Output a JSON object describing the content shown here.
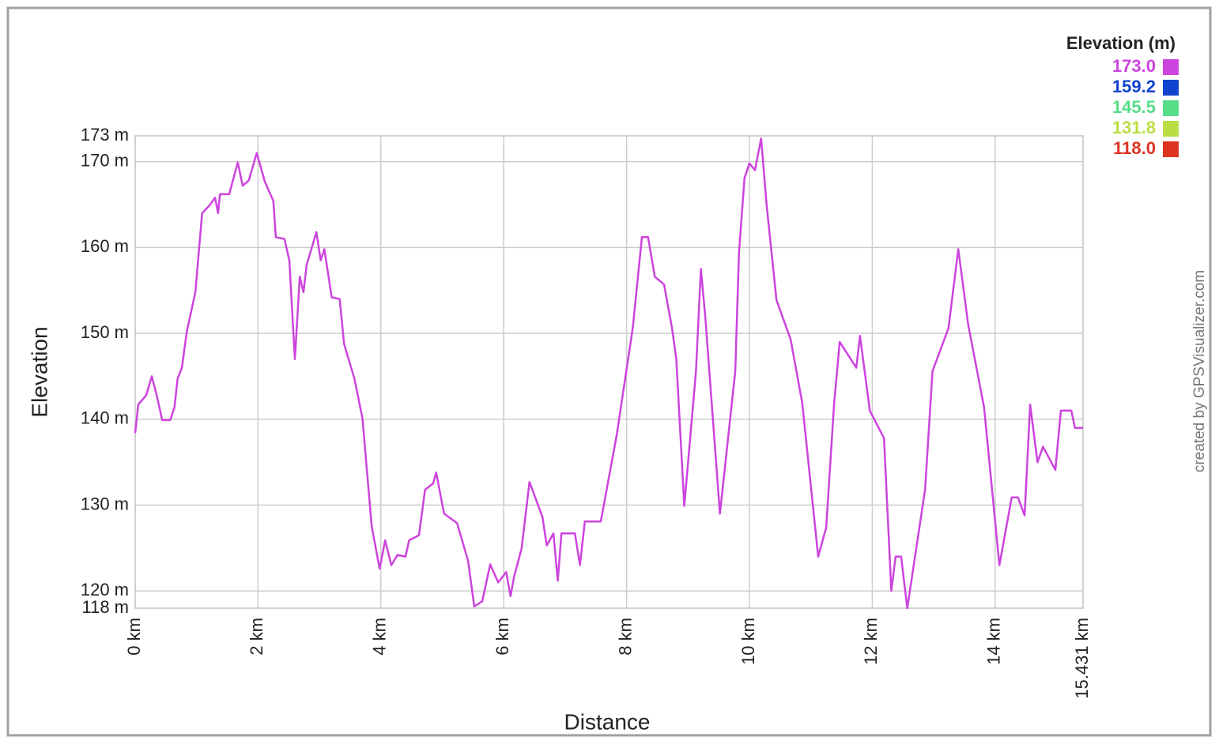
{
  "chart_data": {
    "type": "line",
    "xlabel": "Distance",
    "ylabel": "Elevation",
    "credit": "created by GPSVisualizer.com",
    "legend_title": "Elevation (m)",
    "color_scale": [
      {
        "value": 173.0,
        "label": "173.0",
        "color": "#cc44dd"
      },
      {
        "value": 159.2,
        "label": "159.2",
        "color": "#1144cc"
      },
      {
        "value": 145.5,
        "label": "145.5",
        "color": "#55dd88"
      },
      {
        "value": 131.8,
        "label": "131.8",
        "color": "#bbdd44"
      },
      {
        "value": 118.0,
        "label": "118.0",
        "color": "#dd3322"
      }
    ],
    "x": [
      0,
      0.05,
      0.18,
      0.27,
      0.35,
      0.44,
      0.57,
      0.64,
      0.69,
      0.76,
      0.84,
      0.98,
      1.09,
      1.21,
      1.3,
      1.35,
      1.38,
      1.53,
      1.67,
      1.75,
      1.85,
      1.98,
      2.11,
      2.25,
      2.29,
      2.43,
      2.51,
      2.6,
      2.68,
      2.74,
      2.79,
      2.95,
      3.02,
      3.08,
      3.2,
      3.33,
      3.4,
      3.57,
      3.7,
      3.85,
      3.98,
      4.07,
      4.17,
      4.27,
      4.4,
      4.46,
      4.62,
      4.72,
      4.85,
      4.9,
      5.03,
      5.24,
      5.42,
      5.52,
      5.65,
      5.78,
      5.91,
      6.04,
      6.11,
      6.17,
      6.29,
      6.42,
      6.63,
      6.7,
      6.81,
      6.88,
      6.94,
      7.16,
      7.24,
      7.32,
      7.58,
      7.84,
      8.1,
      8.25,
      8.35,
      8.46,
      8.61,
      8.74,
      8.81,
      8.94,
      9.13,
      9.21,
      9.28,
      9.52,
      9.77,
      9.83,
      9.92,
      10.0,
      10.09,
      10.19,
      10.28,
      10.44,
      10.67,
      10.86,
      11.12,
      11.25,
      11.38,
      11.47,
      11.74,
      11.8,
      11.96,
      12.19,
      12.31,
      12.38,
      12.47,
      12.57,
      12.86,
      12.98,
      13.24,
      13.4,
      13.56,
      13.82,
      14.07,
      14.27,
      14.37,
      14.48,
      14.57,
      14.69,
      14.78,
      14.98,
      15.07,
      15.24,
      15.3,
      15.43
    ],
    "values": [
      138.4,
      141.7,
      142.8,
      145.0,
      142.8,
      139.9,
      139.9,
      141.4,
      144.7,
      146.0,
      150.2,
      154.8,
      164.0,
      164.9,
      165.8,
      164.0,
      166.2,
      166.2,
      169.9,
      167.2,
      167.8,
      171.0,
      167.7,
      165.4,
      161.2,
      161.0,
      158.5,
      147.0,
      156.6,
      154.8,
      157.9,
      161.8,
      158.5,
      159.8,
      154.2,
      154.0,
      148.8,
      144.7,
      140.1,
      127.6,
      122.6,
      125.9,
      123.0,
      124.2,
      124.0,
      125.9,
      126.5,
      131.8,
      132.5,
      133.8,
      129.0,
      127.9,
      123.5,
      118.2,
      118.8,
      123.1,
      121.0,
      122.2,
      119.4,
      121.7,
      124.9,
      132.7,
      128.6,
      125.3,
      126.7,
      121.2,
      126.7,
      126.7,
      123.0,
      128.1,
      128.1,
      138.2,
      150.6,
      161.2,
      161.2,
      156.6,
      155.7,
      150.6,
      147.0,
      129.9,
      145.6,
      157.5,
      152.0,
      129.0,
      145.6,
      159.4,
      168.1,
      169.8,
      169.0,
      172.7,
      164.9,
      153.9,
      149.3,
      141.9,
      124.0,
      127.4,
      141.9,
      149.0,
      146.0,
      149.7,
      141.0,
      137.8,
      120.0,
      124.0,
      124.0,
      118.0,
      131.8,
      145.6,
      150.6,
      159.8,
      151.1,
      141.4,
      123.0,
      130.9,
      130.9,
      128.8,
      141.7,
      135.0,
      136.8,
      134.1,
      141.0,
      141.0,
      139.0,
      139.0
    ],
    "xlim": [
      0,
      15.431
    ],
    "ylim": [
      118,
      173
    ],
    "xticks": [
      {
        "value": 0,
        "label": "0 km"
      },
      {
        "value": 2,
        "label": "2 km"
      },
      {
        "value": 4,
        "label": "4 km"
      },
      {
        "value": 6,
        "label": "6 km"
      },
      {
        "value": 8,
        "label": "8 km"
      },
      {
        "value": 10,
        "label": "10 km"
      },
      {
        "value": 12,
        "label": "12 km"
      },
      {
        "value": 14,
        "label": "14 km"
      },
      {
        "value": 15.431,
        "label": "15.431 km"
      }
    ],
    "yticks": [
      {
        "value": 118,
        "label": "118 m"
      },
      {
        "value": 120,
        "label": "120 m"
      },
      {
        "value": 130,
        "label": "130 m"
      },
      {
        "value": 140,
        "label": "140 m"
      },
      {
        "value": 150,
        "label": "150 m"
      },
      {
        "value": 160,
        "label": "160 m"
      },
      {
        "value": 170,
        "label": "170 m"
      },
      {
        "value": 173,
        "label": "173 m"
      }
    ],
    "grid": true
  }
}
